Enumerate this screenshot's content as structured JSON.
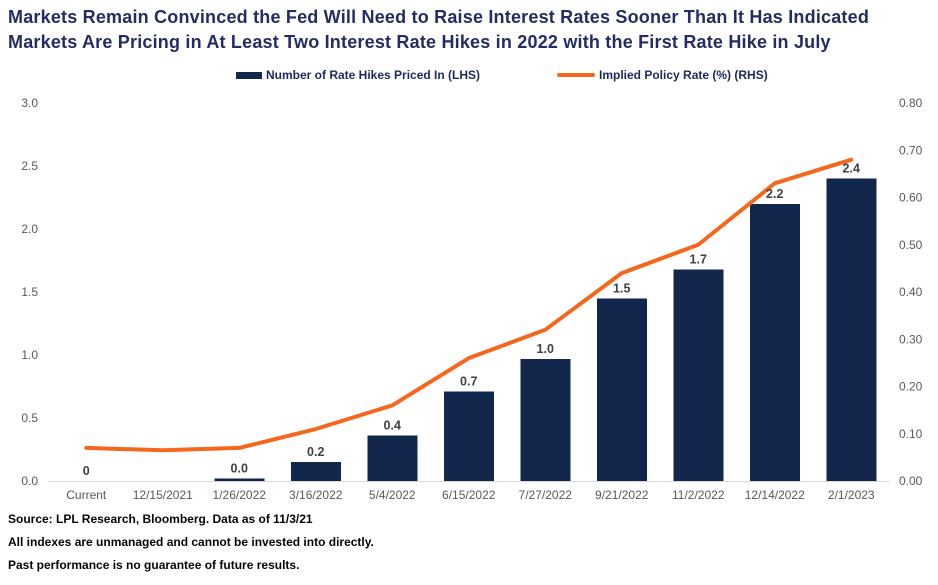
{
  "title": {
    "line1": "Markets Remain Convinced the Fed Will Need to Raise Interest Rates Sooner Than It Has Indicated",
    "line2": "Markets Are Pricing in At Least Two Interest Rate Hikes in 2022 with the First Rate Hike in July"
  },
  "colors": {
    "bar_navy": "#13264b",
    "line_orange": "#f5671d",
    "title_navy": "#242c66",
    "tick_gray": "#595959",
    "data_label_gray": "#404040",
    "axis_line_gray": "#d9d9d9"
  },
  "chart_data": {
    "type": "combo-bar-line",
    "categories": [
      "Current",
      "12/15/2021",
      "1/26/2022",
      "3/16/2022",
      "5/4/2022",
      "6/15/2022",
      "7/27/2022",
      "9/21/2022",
      "11/2/2022",
      "12/14/2022",
      "2/1/2023"
    ],
    "series": [
      {
        "name": "Number of Rate Hikes Priced In (LHS)",
        "type": "bar",
        "axis": "left",
        "color": "#13264b",
        "values": [
          0,
          null,
          0.02,
          0.15,
          0.36,
          0.71,
          0.97,
          1.45,
          1.68,
          2.2,
          2.4
        ],
        "data_labels": [
          "0",
          "",
          "0.0",
          "0.2",
          "0.4",
          "0.7",
          "1.0",
          "1.5",
          "1.7",
          "2.2",
          "2.4"
        ]
      },
      {
        "name": "Implied Policy Rate (%) (RHS)",
        "type": "line",
        "axis": "right",
        "color": "#f5671d",
        "values": [
          0.07,
          0.065,
          0.07,
          0.11,
          0.16,
          0.26,
          0.32,
          0.44,
          0.5,
          0.63,
          0.68
        ]
      }
    ],
    "left_axis": {
      "min": 0,
      "max": 3.0,
      "ticks_top_to_bottom": [
        "3.0",
        "2.5",
        "2.0",
        "1.5",
        "1.0",
        "0.5",
        "0.0"
      ]
    },
    "right_axis": {
      "min": 0,
      "max": 0.8,
      "ticks_top_to_bottom": [
        "0.80",
        "0.70",
        "0.60",
        "0.50",
        "0.40",
        "0.30",
        "0.20",
        "0.10",
        "0.00"
      ]
    },
    "grid": false,
    "legend_position": "top-center"
  },
  "footer": {
    "source": "Source: LPL Research, Bloomberg. Data as of 11/3/21",
    "disclaimer1": "All indexes are unmanaged and cannot be invested into directly.",
    "disclaimer2": "Past performance is no guarantee of future results."
  }
}
